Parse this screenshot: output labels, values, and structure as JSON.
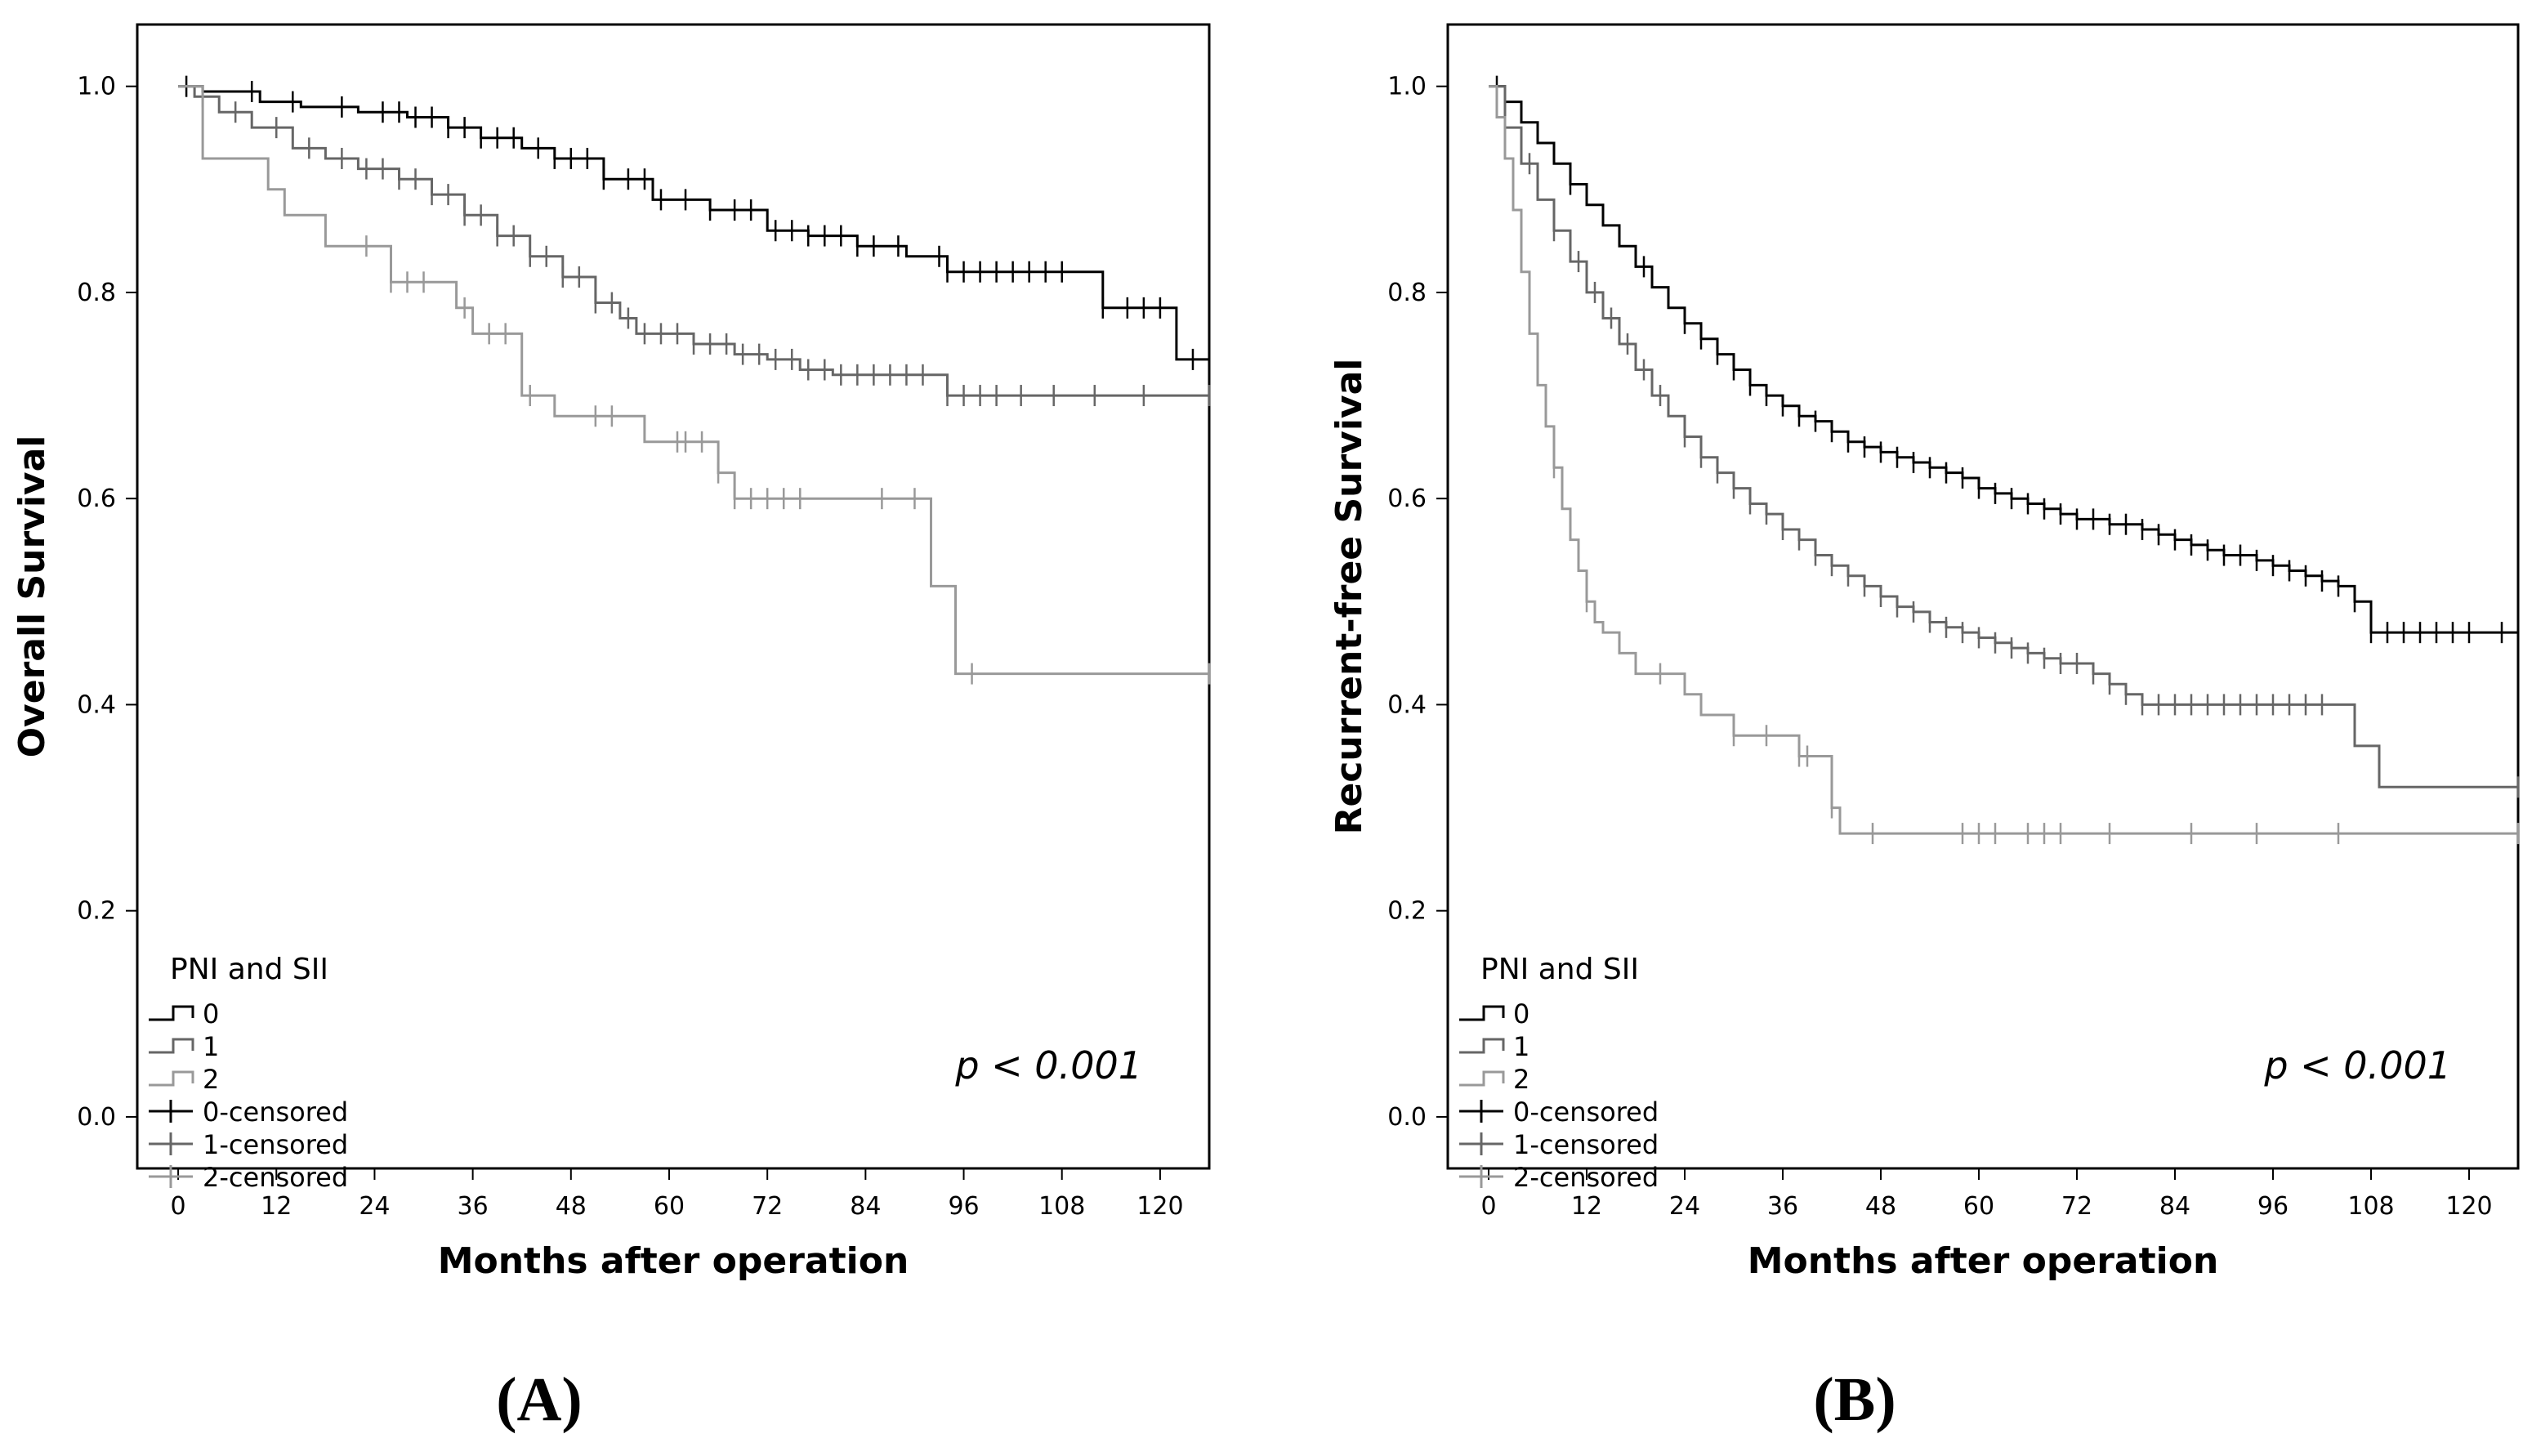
{
  "chart_data": [
    {
      "id": "A",
      "type": "line",
      "subtype": "kaplan-meier",
      "panel_label": "(A)",
      "xlabel": "Months after operation",
      "ylabel": "Overall Survival",
      "xlim": [
        -5,
        126
      ],
      "ylim": [
        -0.05,
        1.06
      ],
      "xticks": [
        0,
        12,
        24,
        36,
        48,
        60,
        72,
        84,
        96,
        108,
        120
      ],
      "yticks": [
        0.0,
        0.2,
        0.4,
        0.6,
        0.8,
        1.0
      ],
      "ytick_labels": [
        "0.0",
        "0.2",
        "0.4",
        "0.6",
        "0.8",
        "1.0"
      ],
      "legend_title": "PNI and SII",
      "legend_location": "bottom-left",
      "annotation": "p < 0.001",
      "series": [
        {
          "name": "0",
          "censored_name": "0-censored",
          "color": "#000000",
          "x": [
            0,
            3,
            10,
            15,
            22,
            28,
            33,
            37,
            42,
            46,
            52,
            58,
            65,
            72,
            77,
            83,
            89,
            94,
            113,
            122,
            126
          ],
          "y": [
            1.0,
            0.995,
            0.985,
            0.98,
            0.975,
            0.97,
            0.96,
            0.95,
            0.94,
            0.93,
            0.91,
            0.89,
            0.88,
            0.86,
            0.855,
            0.845,
            0.835,
            0.82,
            0.785,
            0.735,
            0.735
          ],
          "censor_x": [
            1,
            9,
            14,
            20,
            25,
            27,
            29,
            31,
            33,
            35,
            37,
            39,
            41,
            44,
            46,
            48,
            50,
            52,
            55,
            57,
            59,
            62,
            65,
            68,
            70,
            73,
            75,
            77,
            79,
            81,
            83,
            85,
            88,
            93,
            94,
            96,
            98,
            100,
            102,
            104,
            106,
            108,
            113,
            116,
            118,
            120,
            124,
            126
          ]
        },
        {
          "name": "1",
          "censored_name": "1-censored",
          "color": "#666666",
          "x": [
            0,
            2,
            5,
            9,
            14,
            18,
            22,
            27,
            31,
            35,
            39,
            43,
            47,
            51,
            54,
            56,
            63,
            68,
            72,
            76,
            80,
            94,
            126
          ],
          "y": [
            1.0,
            0.99,
            0.975,
            0.96,
            0.94,
            0.93,
            0.92,
            0.91,
            0.895,
            0.875,
            0.855,
            0.835,
            0.815,
            0.79,
            0.775,
            0.76,
            0.75,
            0.74,
            0.735,
            0.725,
            0.72,
            0.7,
            0.7
          ],
          "censor_x": [
            3,
            7,
            12,
            16,
            20,
            23,
            25,
            27,
            29,
            31,
            33,
            35,
            37,
            39,
            41,
            43,
            45,
            47,
            49,
            51,
            53,
            55,
            57,
            59,
            61,
            63,
            65,
            67,
            69,
            71,
            73,
            75,
            77,
            79,
            81,
            83,
            85,
            87,
            89,
            91,
            94,
            96,
            98,
            100,
            103,
            107,
            112,
            118,
            126
          ]
        },
        {
          "name": "2",
          "censored_name": "2-censored",
          "color": "#999999",
          "x": [
            0,
            3,
            11,
            13,
            18,
            26,
            34,
            36,
            42,
            46,
            57,
            66,
            68,
            91,
            92,
            95,
            126
          ],
          "y": [
            1.0,
            0.93,
            0.9,
            0.875,
            0.845,
            0.81,
            0.785,
            0.76,
            0.7,
            0.68,
            0.655,
            0.625,
            0.6,
            0.6,
            0.515,
            0.43,
            0.43
          ],
          "censor_x": [
            23,
            26,
            28,
            30,
            35,
            38,
            40,
            43,
            51,
            53,
            61,
            62,
            64,
            66,
            68,
            70,
            72,
            74,
            76,
            86,
            90,
            97,
            126
          ]
        }
      ]
    },
    {
      "id": "B",
      "type": "line",
      "subtype": "kaplan-meier",
      "panel_label": "(B)",
      "xlabel": "Months after operation",
      "ylabel": "Recurrent-free Survival",
      "xlim": [
        -5,
        126
      ],
      "ylim": [
        -0.05,
        1.06
      ],
      "xticks": [
        0,
        12,
        24,
        36,
        48,
        60,
        72,
        84,
        96,
        108,
        120
      ],
      "yticks": [
        0.0,
        0.2,
        0.4,
        0.6,
        0.8,
        1.0
      ],
      "ytick_labels": [
        "0.0",
        "0.2",
        "0.4",
        "0.6",
        "0.8",
        "1.0"
      ],
      "legend_title": "PNI and SII",
      "legend_location": "bottom-left",
      "annotation": "p < 0.001",
      "series": [
        {
          "name": "0",
          "censored_name": "0-censored",
          "color": "#000000",
          "x": [
            0,
            2,
            4,
            6,
            8,
            10,
            12,
            14,
            16,
            18,
            20,
            22,
            24,
            26,
            28,
            30,
            32,
            34,
            36,
            38,
            40,
            42,
            44,
            46,
            48,
            50,
            52,
            54,
            56,
            58,
            60,
            62,
            64,
            66,
            68,
            70,
            72,
            74,
            76,
            78,
            80,
            82,
            84,
            86,
            88,
            90,
            92,
            94,
            96,
            98,
            100,
            102,
            104,
            106,
            108,
            126
          ],
          "y": [
            1.0,
            0.985,
            0.965,
            0.945,
            0.925,
            0.905,
            0.885,
            0.865,
            0.845,
            0.825,
            0.805,
            0.785,
            0.77,
            0.755,
            0.74,
            0.725,
            0.71,
            0.7,
            0.69,
            0.68,
            0.675,
            0.665,
            0.655,
            0.65,
            0.645,
            0.64,
            0.635,
            0.63,
            0.625,
            0.62,
            0.61,
            0.605,
            0.6,
            0.595,
            0.59,
            0.585,
            0.58,
            0.58,
            0.575,
            0.575,
            0.57,
            0.565,
            0.56,
            0.555,
            0.55,
            0.545,
            0.545,
            0.54,
            0.535,
            0.53,
            0.525,
            0.52,
            0.515,
            0.5,
            0.47,
            0.47
          ],
          "censor_x": [
            1,
            10,
            19,
            24,
            26,
            28,
            30,
            32,
            34,
            36,
            38,
            40,
            42,
            44,
            46,
            48,
            50,
            52,
            54,
            56,
            58,
            60,
            62,
            64,
            66,
            68,
            70,
            72,
            74,
            76,
            78,
            80,
            82,
            84,
            86,
            88,
            90,
            92,
            94,
            96,
            98,
            100,
            102,
            104,
            106,
            108,
            110,
            112,
            114,
            116,
            118,
            120,
            124,
            126
          ]
        },
        {
          "name": "1",
          "censored_name": "1-censored",
          "color": "#666666",
          "x": [
            0,
            2,
            4,
            6,
            8,
            10,
            12,
            14,
            16,
            18,
            20,
            22,
            24,
            26,
            28,
            30,
            32,
            34,
            36,
            38,
            40,
            42,
            44,
            46,
            48,
            50,
            52,
            54,
            56,
            58,
            60,
            62,
            64,
            66,
            68,
            70,
            72,
            74,
            76,
            78,
            80,
            82,
            84,
            86,
            106,
            109,
            126
          ],
          "y": [
            1.0,
            0.96,
            0.925,
            0.89,
            0.86,
            0.83,
            0.8,
            0.775,
            0.75,
            0.725,
            0.7,
            0.68,
            0.66,
            0.64,
            0.625,
            0.61,
            0.595,
            0.585,
            0.57,
            0.56,
            0.545,
            0.535,
            0.525,
            0.515,
            0.505,
            0.495,
            0.49,
            0.48,
            0.475,
            0.47,
            0.465,
            0.46,
            0.455,
            0.45,
            0.445,
            0.44,
            0.44,
            0.43,
            0.42,
            0.41,
            0.4,
            0.4,
            0.4,
            0.4,
            0.36,
            0.32,
            0.32
          ],
          "censor_x": [
            2,
            5,
            8,
            11,
            13,
            15,
            17,
            19,
            21,
            24,
            26,
            28,
            30,
            32,
            34,
            36,
            38,
            40,
            42,
            44,
            46,
            48,
            50,
            52,
            54,
            56,
            58,
            60,
            62,
            64,
            66,
            68,
            70,
            72,
            74,
            76,
            78,
            80,
            82,
            84,
            86,
            88,
            90,
            92,
            94,
            96,
            98,
            100,
            102,
            126
          ]
        },
        {
          "name": "2",
          "censored_name": "2-censored",
          "color": "#999999",
          "x": [
            0,
            1,
            2,
            3,
            4,
            5,
            6,
            7,
            8,
            9,
            10,
            11,
            12,
            13,
            14,
            16,
            18,
            20,
            22,
            24,
            26,
            30,
            38,
            42,
            43,
            126
          ],
          "y": [
            1.0,
            0.97,
            0.93,
            0.88,
            0.82,
            0.76,
            0.71,
            0.67,
            0.63,
            0.59,
            0.56,
            0.53,
            0.5,
            0.48,
            0.47,
            0.45,
            0.43,
            0.43,
            0.43,
            0.41,
            0.39,
            0.37,
            0.35,
            0.3,
            0.275,
            0.275
          ],
          "censor_x": [
            8,
            12,
            21,
            30,
            34,
            38,
            39,
            42,
            47,
            58,
            60,
            62,
            66,
            68,
            70,
            76,
            86,
            94,
            104,
            126
          ]
        }
      ]
    }
  ]
}
